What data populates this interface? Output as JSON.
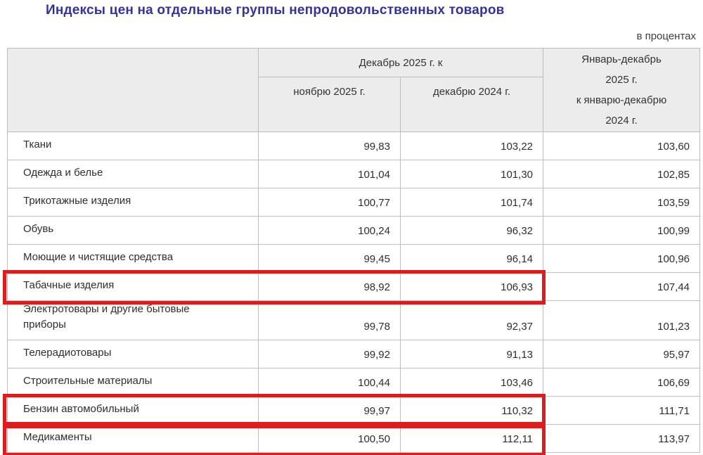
{
  "title": "Индексы цен на отдельные группы непродовольственных товаров",
  "units_label": "в процентах",
  "colors": {
    "title": "#333399",
    "header_background": "#ececec",
    "table_border": "#bdbdbd",
    "highlight_border": "#dd1d1d"
  },
  "table": {
    "column_group_header": "Декабрь 2025 г. к",
    "sub_columns": [
      "ноябрю 2025 г.",
      "декабрю 2024 г."
    ],
    "ytd_column_header": "Январь-декабрь\n2025 г.\nк январю-декабрю\n2024 г.",
    "rows": [
      {
        "label": "Ткани",
        "values": [
          "99,83",
          "103,22",
          "103,60"
        ],
        "highlighted": false
      },
      {
        "label": "Одежда и белье",
        "values": [
          "101,04",
          "101,30",
          "102,85"
        ],
        "highlighted": false
      },
      {
        "label": "Трикотажные изделия",
        "values": [
          "100,77",
          "101,74",
          "103,59"
        ],
        "highlighted": false
      },
      {
        "label": "Обувь",
        "values": [
          "100,24",
          "96,32",
          "100,99"
        ],
        "highlighted": false
      },
      {
        "label": "Моющие и чистящие средства",
        "values": [
          "99,45",
          "96,14",
          "100,96"
        ],
        "highlighted": false
      },
      {
        "label": "Табачные изделия",
        "values": [
          "98,92",
          "106,93",
          "107,44"
        ],
        "highlighted": true
      },
      {
        "label": "Электротовары и другие бытовые\nприборы",
        "values": [
          "99,78",
          "92,37",
          "101,23"
        ],
        "highlighted": false
      },
      {
        "label": "Телерадиотовары",
        "values": [
          "99,92",
          "91,13",
          "95,97"
        ],
        "highlighted": false
      },
      {
        "label": "Строительные материалы",
        "values": [
          "100,44",
          "103,46",
          "106,69"
        ],
        "highlighted": false
      },
      {
        "label": "Бензин автомобильный",
        "values": [
          "99,97",
          "110,32",
          "111,71"
        ],
        "highlighted": true
      },
      {
        "label": "Медикаменты",
        "values": [
          "100,50",
          "112,11",
          "113,97"
        ],
        "highlighted": true
      }
    ]
  }
}
